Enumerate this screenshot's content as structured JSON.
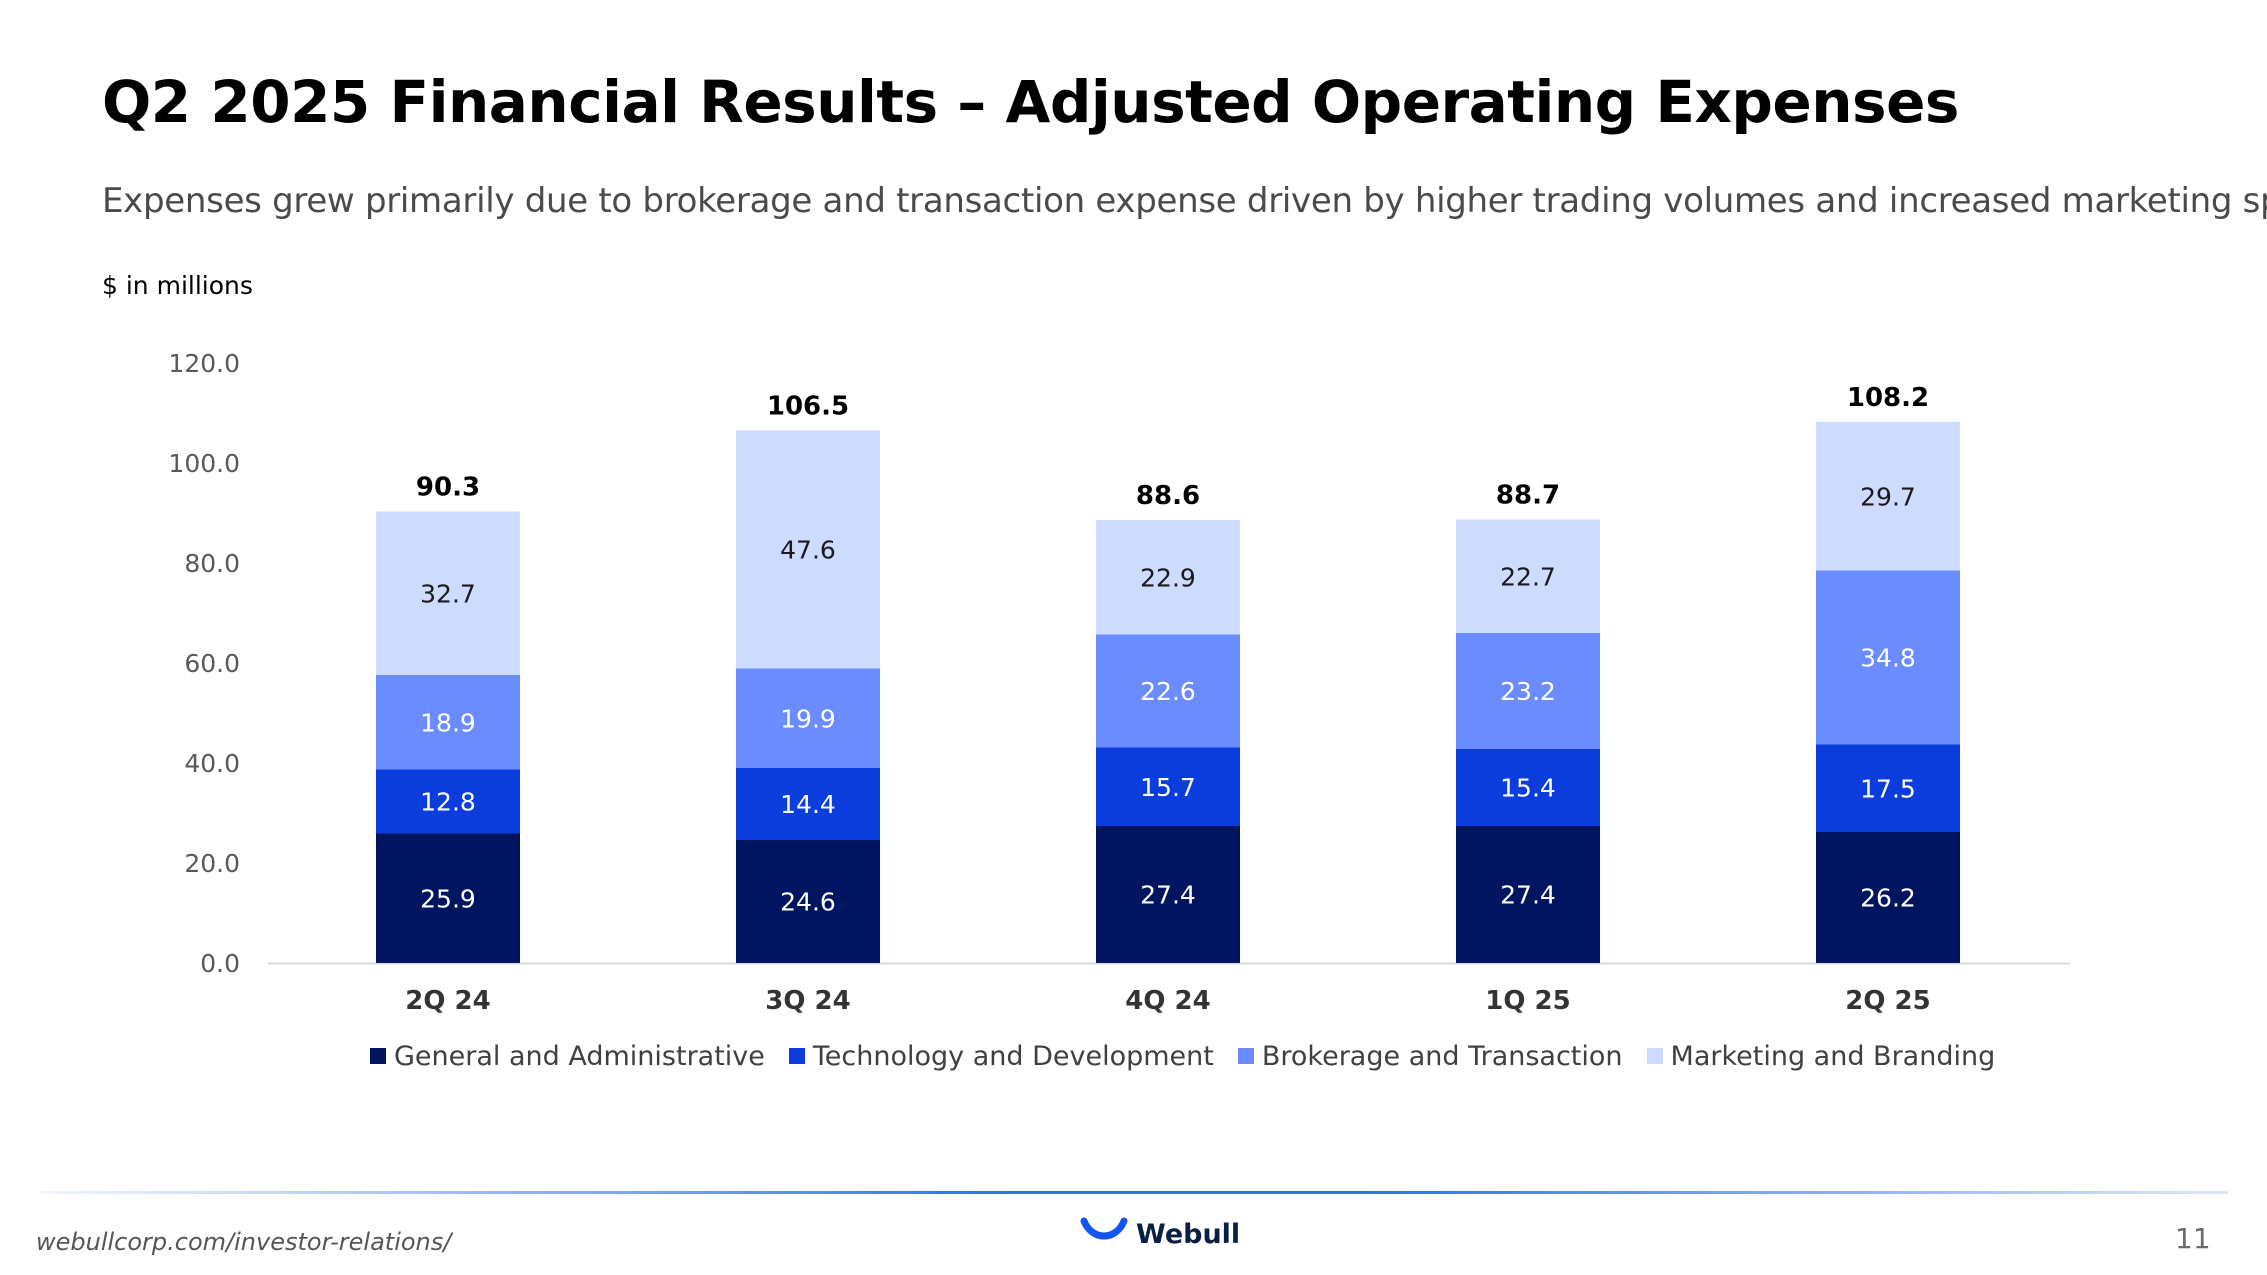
{
  "slide": {
    "title": "Q2 2025 Financial Results – Adjusted Operating Expenses",
    "subtitle": "Expenses grew primarily due to brokerage and transaction expense driven by higher trading volumes and increased marketing spend",
    "units": "$ in millions",
    "page_number": "11"
  },
  "footer": {
    "url": "webullcorp.com/investor-relations/",
    "brand": "Webull",
    "logo_icon": "webull-smile-icon"
  },
  "chart_data": {
    "type": "bar",
    "stacked": true,
    "title": "",
    "xlabel": "",
    "ylabel": "",
    "ylim": [
      0,
      120
    ],
    "yticks": [
      "0.0",
      "20.0",
      "40.0",
      "60.0",
      "80.0",
      "100.0",
      "120.0"
    ],
    "categories": [
      "2Q 24",
      "3Q 24",
      "4Q 24",
      "1Q 25",
      "2Q 25"
    ],
    "totals": [
      "90.3",
      "106.5",
      "88.6",
      "88.7",
      "108.2"
    ],
    "series": [
      {
        "name": "General and Administrative",
        "color": "#001560",
        "label_color": "#ffffff",
        "values": [
          25.9,
          24.6,
          27.4,
          27.4,
          26.2
        ]
      },
      {
        "name": "Technology and Development",
        "color": "#0a3ddc",
        "label_color": "#ffffff",
        "values": [
          12.8,
          14.4,
          15.7,
          15.4,
          17.5
        ]
      },
      {
        "name": "Brokerage and Transaction",
        "color": "#6a8cff",
        "label_color": "#ffffff",
        "values": [
          18.9,
          19.9,
          22.6,
          23.2,
          34.8
        ]
      },
      {
        "name": "Marketing and Branding",
        "color": "#cddbff",
        "label_color": "#1a1a1a",
        "values": [
          32.7,
          47.6,
          22.9,
          22.7,
          29.7
        ]
      }
    ],
    "legend_position": "bottom",
    "grid": false
  }
}
